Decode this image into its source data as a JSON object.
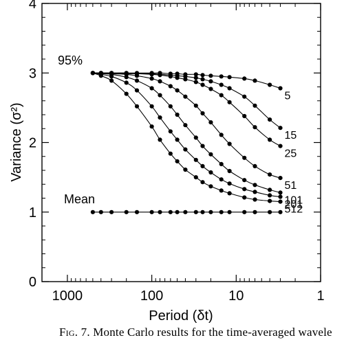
{
  "chart_data": {
    "type": "line",
    "xscale": "log",
    "xlabel": "Period (δt)",
    "ylabel": "Variance (σ²)",
    "xlim": [
      2000,
      1
    ],
    "ylim": [
      0,
      4
    ],
    "xticks": [
      "1000",
      "100",
      "10",
      "1"
    ],
    "yticks": [
      "0",
      "1",
      "2",
      "3",
      "4"
    ],
    "annotations": {
      "p95": "95%",
      "mean": "Mean"
    },
    "series": [
      {
        "name": "5",
        "x": [
          500,
          400,
          300,
          200,
          150,
          100,
          80,
          60,
          50,
          40,
          30,
          25,
          20,
          15,
          12,
          8,
          6,
          4,
          3
        ],
        "y": [
          3.0,
          3.0,
          3.0,
          3.0,
          3.0,
          3.0,
          3.0,
          2.99,
          2.99,
          2.98,
          2.98,
          2.97,
          2.96,
          2.95,
          2.94,
          2.92,
          2.89,
          2.83,
          2.78
        ]
      },
      {
        "name": "15",
        "x": [
          500,
          400,
          300,
          200,
          150,
          100,
          80,
          60,
          50,
          40,
          30,
          25,
          20,
          15,
          12,
          8,
          6,
          4,
          3
        ],
        "y": [
          3.0,
          3.0,
          3.0,
          3.0,
          2.99,
          2.99,
          2.98,
          2.97,
          2.96,
          2.95,
          2.93,
          2.91,
          2.88,
          2.83,
          2.78,
          2.66,
          2.53,
          2.33,
          2.21
        ]
      },
      {
        "name": "25",
        "x": [
          500,
          400,
          300,
          200,
          150,
          100,
          80,
          60,
          50,
          40,
          30,
          25,
          20,
          15,
          12,
          8,
          6,
          4,
          3
        ],
        "y": [
          3.0,
          3.0,
          3.0,
          2.99,
          2.99,
          2.98,
          2.97,
          2.95,
          2.93,
          2.91,
          2.87,
          2.83,
          2.77,
          2.68,
          2.58,
          2.38,
          2.22,
          2.04,
          1.95
        ]
      },
      {
        "name": "51",
        "x": [
          500,
          400,
          300,
          200,
          150,
          100,
          80,
          60,
          50,
          40,
          30,
          25,
          20,
          15,
          12,
          8,
          6,
          4,
          3
        ],
        "y": [
          3.0,
          3.0,
          2.99,
          2.98,
          2.96,
          2.92,
          2.88,
          2.81,
          2.75,
          2.66,
          2.53,
          2.42,
          2.29,
          2.11,
          1.98,
          1.78,
          1.66,
          1.54,
          1.49
        ]
      },
      {
        "name": "101",
        "x": [
          500,
          400,
          300,
          200,
          150,
          100,
          80,
          60,
          50,
          40,
          30,
          25,
          20,
          15,
          12,
          8,
          6,
          4,
          3
        ],
        "y": [
          3.0,
          2.99,
          2.98,
          2.94,
          2.89,
          2.78,
          2.68,
          2.52,
          2.4,
          2.25,
          2.07,
          1.95,
          1.83,
          1.69,
          1.59,
          1.46,
          1.39,
          1.32,
          1.28
        ]
      },
      {
        "name": "201",
        "x": [
          500,
          400,
          300,
          200,
          150,
          100,
          80,
          60,
          50,
          40,
          30,
          25,
          20,
          15,
          12,
          8,
          6,
          4,
          3
        ],
        "y": [
          3.0,
          2.98,
          2.95,
          2.86,
          2.75,
          2.52,
          2.36,
          2.16,
          2.04,
          1.9,
          1.75,
          1.66,
          1.57,
          1.47,
          1.41,
          1.33,
          1.29,
          1.24,
          1.22
        ]
      },
      {
        "name": "512",
        "x": [
          500,
          400,
          300,
          200,
          150,
          100,
          80,
          60,
          50,
          40,
          30,
          25,
          20,
          15,
          12,
          8,
          6,
          4,
          3
        ],
        "y": [
          3.0,
          2.96,
          2.89,
          2.7,
          2.52,
          2.23,
          2.04,
          1.84,
          1.73,
          1.61,
          1.5,
          1.43,
          1.37,
          1.31,
          1.27,
          1.21,
          1.18,
          1.16,
          1.15
        ]
      },
      {
        "name": "Mean",
        "x": [
          500,
          400,
          300,
          200,
          150,
          100,
          80,
          60,
          50,
          40,
          30,
          25,
          20,
          15,
          12,
          8,
          6,
          4,
          3
        ],
        "y": [
          1,
          1,
          1,
          1,
          1,
          1,
          1,
          1,
          1,
          1,
          1,
          1,
          1,
          1,
          1,
          1,
          1,
          1,
          1
        ]
      }
    ]
  },
  "caption": {
    "prefix": "Fig",
    "text": ". 7. Monte Carlo results for the time-averaged wavele"
  }
}
